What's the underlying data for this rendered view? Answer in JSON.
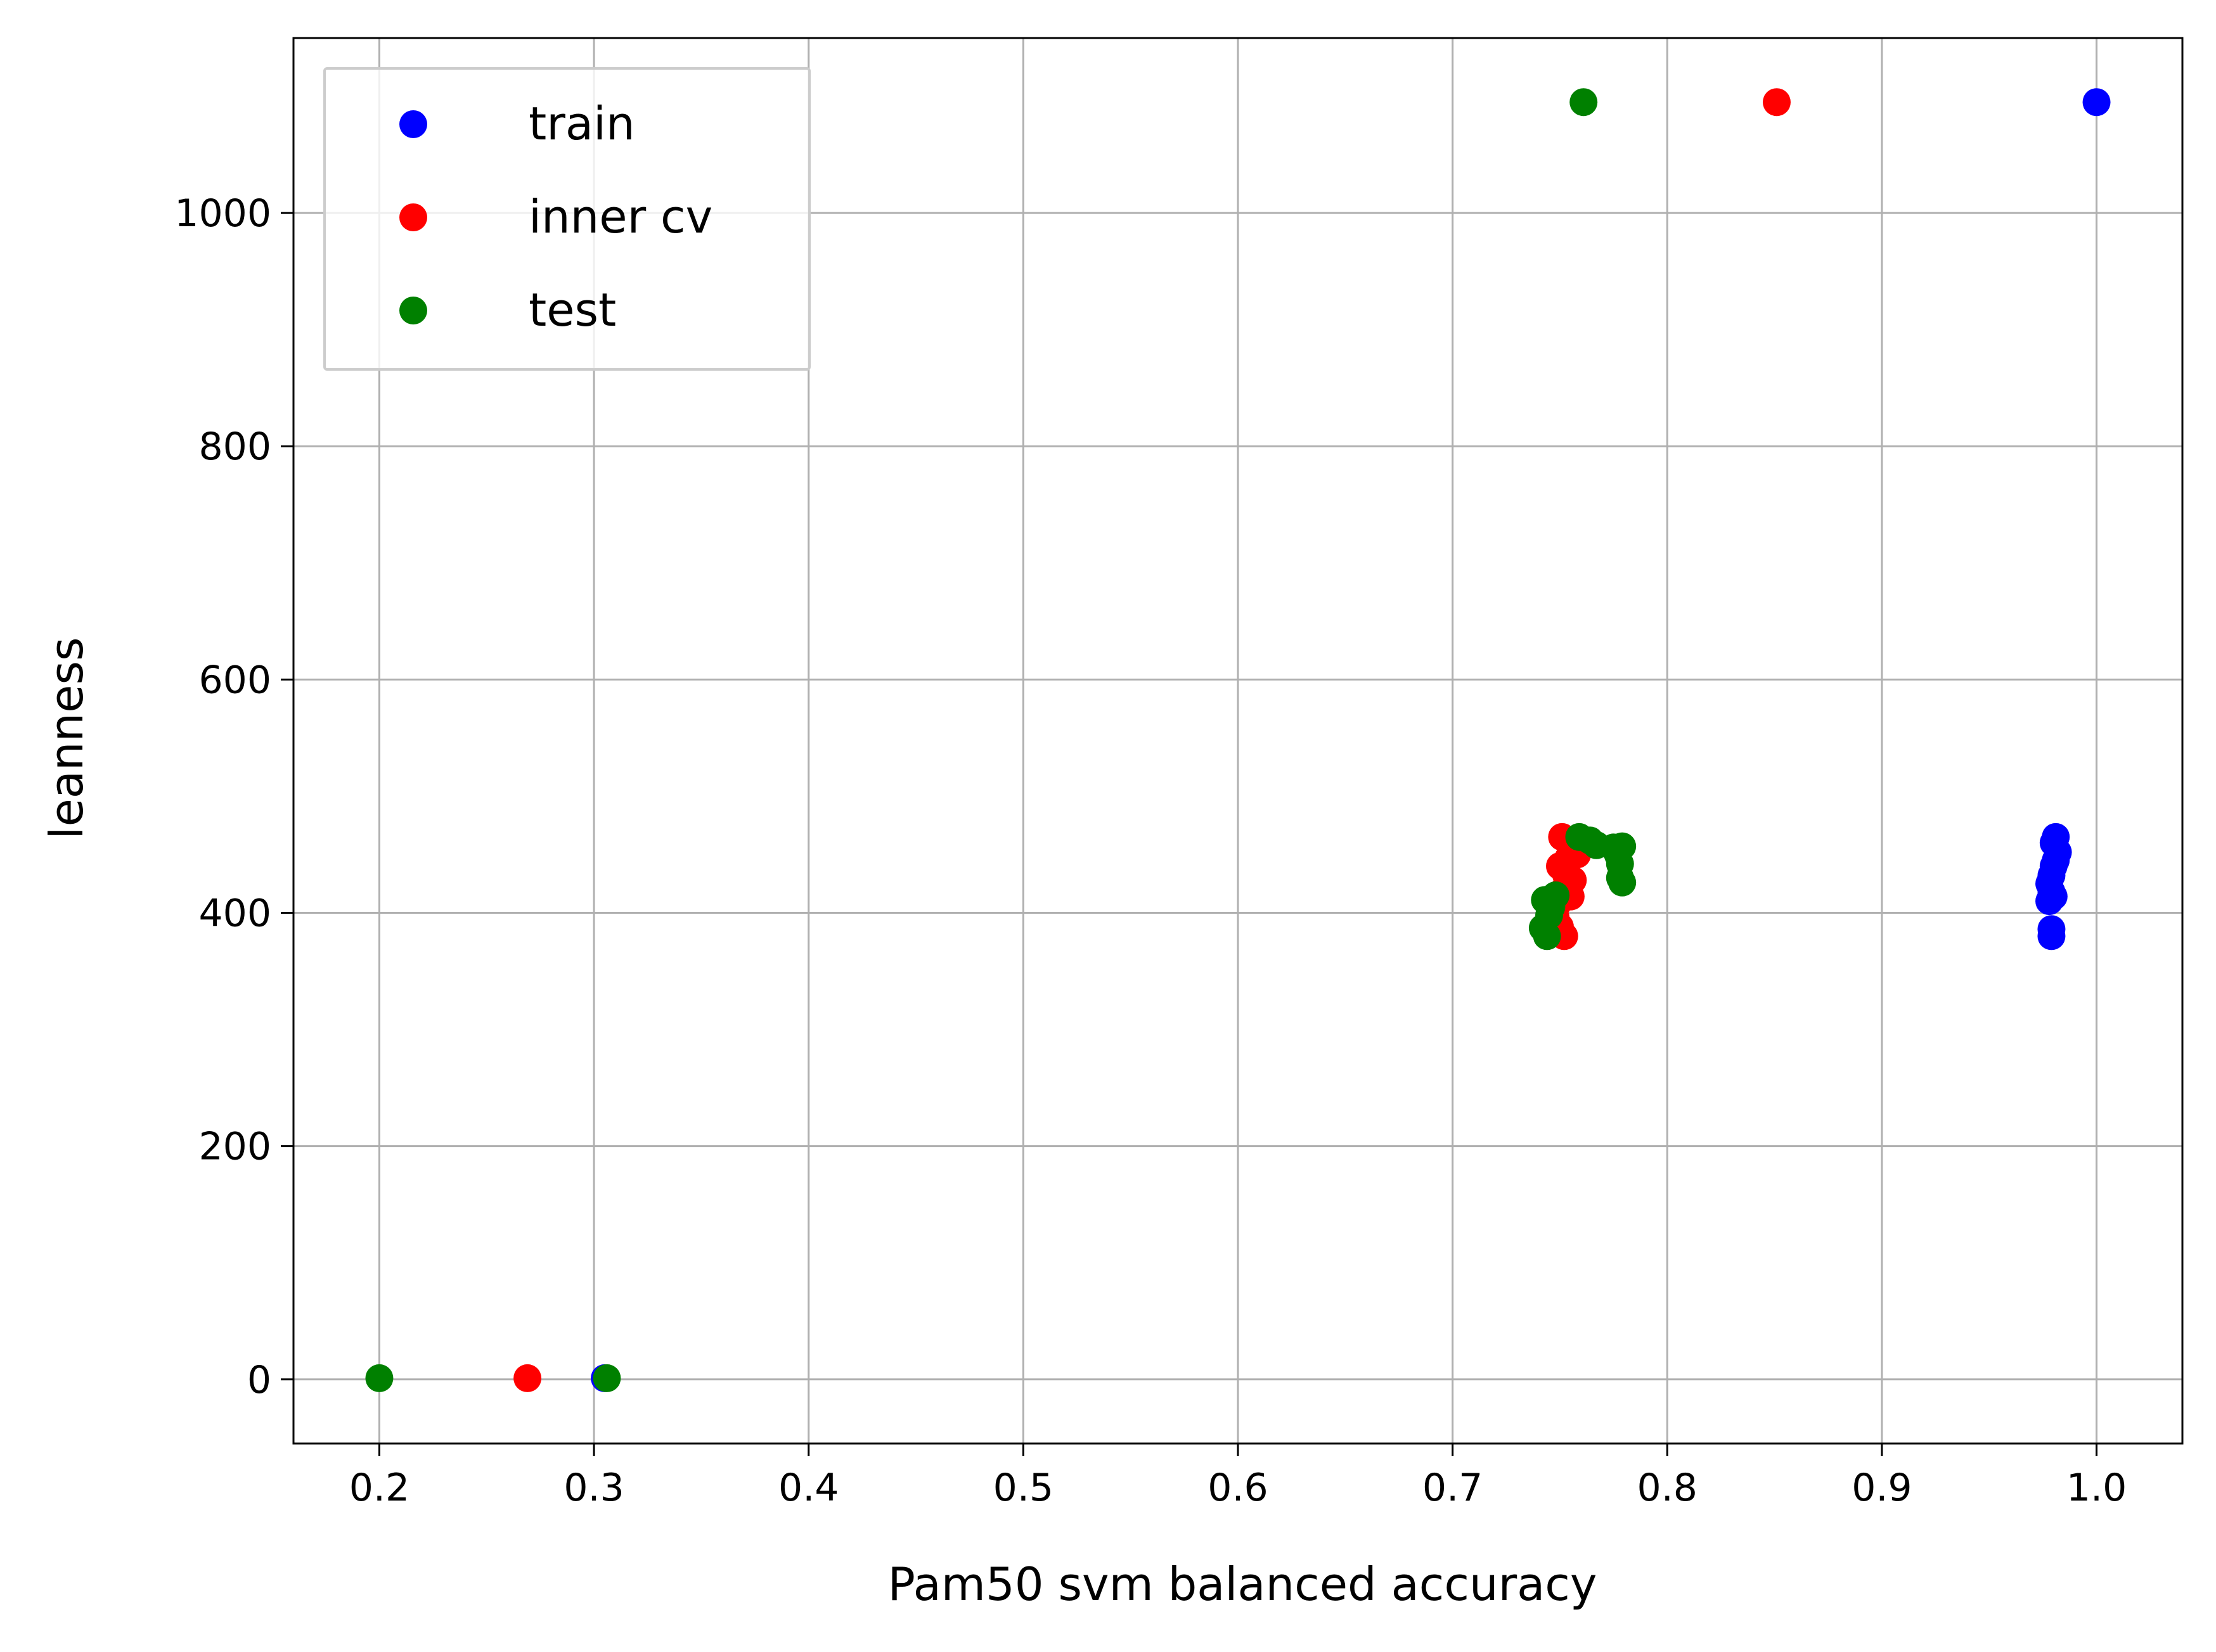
{
  "chart_data": {
    "type": "scatter",
    "xlabel": "Pam50 svm balanced accuracy",
    "ylabel": "leanness",
    "xlim": [
      0.16,
      1.04
    ],
    "ylim": [
      -55,
      1150
    ],
    "x_ticks": [
      0.2,
      0.3,
      0.4,
      0.5,
      0.6,
      0.7,
      0.8,
      0.9,
      1.0
    ],
    "x_tick_labels": [
      "0.2",
      "0.3",
      "0.4",
      "0.5",
      "0.6",
      "0.7",
      "0.8",
      "0.9",
      "1.0"
    ],
    "y_ticks": [
      0,
      200,
      400,
      600,
      800,
      1000
    ],
    "y_tick_labels": [
      "0",
      "200",
      "400",
      "600",
      "800",
      "1000"
    ],
    "grid": true,
    "legend_position": "top-left",
    "series": [
      {
        "name": "train",
        "color": "#0000ff",
        "points": [
          [
            1.0,
            1095
          ],
          [
            0.981,
            465
          ],
          [
            0.98,
            460
          ],
          [
            0.982,
            452
          ],
          [
            0.981,
            445
          ],
          [
            0.98,
            440
          ],
          [
            0.979,
            432
          ],
          [
            0.978,
            425
          ],
          [
            0.979,
            418
          ],
          [
            0.98,
            414
          ],
          [
            0.978,
            410
          ],
          [
            0.979,
            386
          ],
          [
            0.979,
            380
          ],
          [
            0.305,
            1
          ]
        ]
      },
      {
        "name": "inner cv",
        "color": "#ff0000",
        "points": [
          [
            0.851,
            1095
          ],
          [
            0.751,
            465
          ],
          [
            0.758,
            450
          ],
          [
            0.754,
            447
          ],
          [
            0.75,
            440
          ],
          [
            0.753,
            432
          ],
          [
            0.756,
            428
          ],
          [
            0.752,
            420
          ],
          [
            0.755,
            414
          ],
          [
            0.749,
            408
          ],
          [
            0.748,
            396
          ],
          [
            0.75,
            388
          ],
          [
            0.752,
            380
          ],
          [
            0.269,
            1
          ]
        ]
      },
      {
        "name": "test",
        "color": "#008000",
        "points": [
          [
            0.761,
            1095
          ],
          [
            0.759,
            465
          ],
          [
            0.764,
            462
          ],
          [
            0.767,
            458
          ],
          [
            0.775,
            456
          ],
          [
            0.779,
            457
          ],
          [
            0.777,
            450
          ],
          [
            0.778,
            442
          ],
          [
            0.778,
            430
          ],
          [
            0.779,
            426
          ],
          [
            0.748,
            415
          ],
          [
            0.743,
            411
          ],
          [
            0.746,
            405
          ],
          [
            0.745,
            398
          ],
          [
            0.742,
            387
          ],
          [
            0.744,
            380
          ],
          [
            0.2,
            1
          ],
          [
            0.306,
            1
          ]
        ]
      }
    ]
  }
}
